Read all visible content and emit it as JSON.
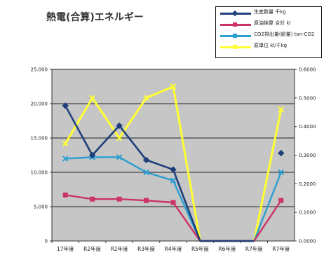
{
  "chart_data": {
    "type": "line",
    "title": "熱電(合算)エネルギー",
    "categories": [
      "17年度",
      "R2年度",
      "R2年度",
      "R3年度",
      "R4年度",
      "R5年度",
      "R6年度",
      "R7年度",
      "R7年度"
    ],
    "y_left": {
      "ylim": [
        0,
        25000
      ],
      "ticks": [
        0,
        5000,
        10000,
        15000,
        20000,
        25000
      ],
      "tick_labels": [
        "0",
        "5.000",
        "10.000",
        "15.000",
        "20.000",
        "25.000"
      ]
    },
    "y_right": {
      "ylim": [
        0,
        0.6
      ],
      "ticks": [
        0,
        0.1,
        0.2,
        0.3,
        0.4,
        0.5,
        0.6
      ],
      "tick_labels": [
        "0.0000",
        "0.1000",
        "0.2000",
        "0.3000",
        "0.4000",
        "0.5000",
        "0.6000"
      ]
    },
    "grid": true,
    "legend_position": "top-right",
    "series": [
      {
        "name": "生産数量 千kg",
        "axis": "left",
        "color": "#1f3f7a",
        "marker": "diamond",
        "values": [
          19700,
          12500,
          16800,
          11800,
          10400,
          0,
          0,
          0,
          12800
        ],
        "breaks_before": [
          8
        ]
      },
      {
        "name": "原油換算 合計 kl",
        "axis": "left",
        "color": "#cc3366",
        "marker": "square",
        "values": [
          6700,
          6100,
          6100,
          5900,
          5600,
          0,
          0,
          0,
          5900
        ]
      },
      {
        "name": "CO2排出量(総量) ton-CO2",
        "axis": "left",
        "color": "#2a9fd0",
        "marker": "x",
        "values": [
          12000,
          12200,
          12200,
          10000,
          8800,
          0,
          0,
          0,
          10000
        ]
      },
      {
        "name": "原単位 kl/千kg",
        "axis": "right",
        "color": "#ffff33",
        "marker": "x",
        "values": [
          0.34,
          0.5,
          0.36,
          0.5,
          0.54,
          0,
          0,
          0,
          0.46
        ]
      }
    ]
  }
}
